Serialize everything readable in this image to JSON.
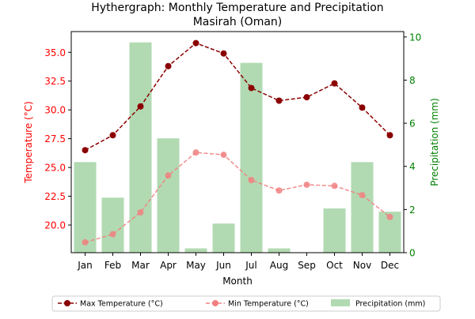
{
  "chart_data": {
    "type": "bar",
    "title": "Hythergraph: Monthly Temperature and Precipitation",
    "subtitle": "Masirah (Oman)",
    "xlabel": "Month",
    "ylabel_left": "Temperature (°C)",
    "ylabel_right": "Precipitation (mm)",
    "categories": [
      "Jan",
      "Feb",
      "Mar",
      "Apr",
      "May",
      "Jun",
      "Jul",
      "Aug",
      "Sep",
      "Oct",
      "Nov",
      "Dec"
    ],
    "ylim_left": [
      17.6,
      36.8
    ],
    "ylim_right": [
      0,
      10.25
    ],
    "yticks_left": [
      "20.0",
      "22.5",
      "25.0",
      "27.5",
      "30.0",
      "32.5",
      "35.0"
    ],
    "yticks_right": [
      "0",
      "2",
      "4",
      "6",
      "8",
      "10"
    ],
    "grid": false,
    "legend_position": "bottom",
    "series": [
      {
        "name": "Max Temperature (°C)",
        "type": "line",
        "axis": "left",
        "color": "#8b0000",
        "values": [
          26.5,
          27.8,
          30.3,
          33.8,
          35.8,
          34.9,
          31.9,
          30.8,
          31.1,
          32.3,
          30.2,
          27.8
        ]
      },
      {
        "name": "Min Temperature (°C)",
        "type": "line",
        "axis": "left",
        "color": "#f08080",
        "values": [
          18.5,
          19.2,
          21.1,
          24.3,
          26.3,
          26.1,
          23.9,
          23.0,
          23.5,
          23.4,
          22.6,
          20.7
        ]
      },
      {
        "name": "Precipitation (mm)",
        "type": "bar",
        "axis": "right",
        "color": "#b2dab2",
        "values": [
          4.2,
          2.55,
          9.75,
          5.3,
          0.2,
          1.35,
          8.8,
          0.2,
          0.0,
          2.05,
          4.2,
          1.9
        ]
      }
    ],
    "colors": {
      "left_axis": "#ff0000",
      "right_axis": "#008000",
      "text": "#000000"
    }
  }
}
